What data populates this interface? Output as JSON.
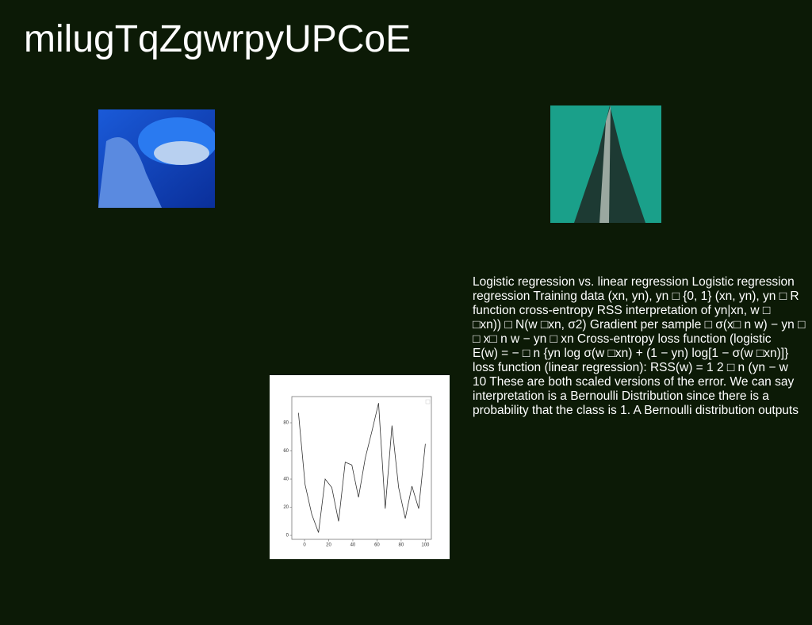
{
  "header": {
    "title": "milugTqZgwrpyUPCoE"
  },
  "text": {
    "lines": [
      "Logistic regression vs. linear regression Logistic regression",
      "regression Training data (xn, yn), yn □ {0, 1} (xn, yn), yn □ R",
      "function cross-entropy RSS interpretation of yn|xn, w □",
      "□xn)) □ N(w □xn, σ2) Gradient per sample □ σ(x□ n w) − yn □",
      "□ x□ n w − yn □ xn Cross-entropy loss function (logistic",
      "E(w) = − □ n {yn log σ(w □xn) + (1 − yn) log[1 − σ(w □xn)]}",
      "loss function (linear regression): RSS(w) = 1 2 □ n (yn − w",
      "10 These are both scaled versions of the error. We can say",
      "interpretation is a Bernoulli Distribution since there is a",
      "probability that the class is 1. A Bernoulli distribution outputs"
    ]
  },
  "chart_data": {
    "type": "line",
    "x": [
      -5,
      0.5,
      6,
      11.6,
      17.1,
      22.6,
      28.2,
      33.7,
      39.2,
      44.7,
      50.3,
      55.8,
      61.3,
      66.8,
      72.4,
      77.9,
      83.4,
      88.9,
      94.5,
      100
    ],
    "values": [
      87,
      36,
      15,
      2,
      40,
      34,
      10,
      52,
      50,
      27,
      55,
      74,
      94,
      19,
      78,
      34,
      12,
      35,
      19,
      65
    ],
    "color": "#333333",
    "xlim": [
      -10.5,
      105
    ],
    "ylim": [
      -2.8,
      98.6
    ],
    "xticks": [
      0,
      20,
      40,
      60,
      80,
      100
    ],
    "yticks": [
      0,
      20,
      40,
      60,
      80
    ]
  }
}
